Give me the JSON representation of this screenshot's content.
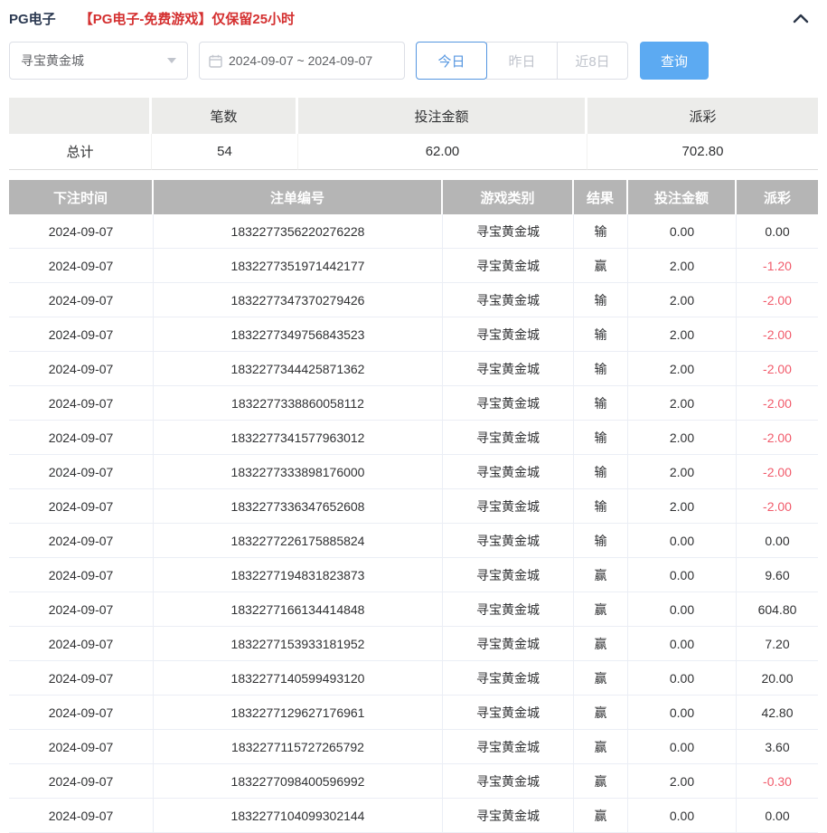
{
  "header": {
    "title": "PG电子",
    "notice": "【PG电子-免费游戏】仅保留25小时",
    "collapse_icon": "chevron-up"
  },
  "filters": {
    "game_select": {
      "value": "寻宝黄金城",
      "icon": "caret-down"
    },
    "date_range": {
      "value": "2024-09-07 ~ 2024-09-07",
      "icon": "calendar"
    },
    "quick_buttons": [
      {
        "label": "今日",
        "active": true
      },
      {
        "label": "昨日",
        "active": false
      },
      {
        "label": "近8日",
        "active": false
      }
    ],
    "search_label": "查询"
  },
  "summary": {
    "headers": {
      "blank": "",
      "count": "笔数",
      "bet_amount": "投注金额",
      "payout": "派彩"
    },
    "total": {
      "label": "总计",
      "count": "54",
      "bet_amount": "62.00",
      "payout": "702.80"
    }
  },
  "table": {
    "headers": [
      "下注时间",
      "注单编号",
      "游戏类别",
      "结果",
      "投注金额",
      "派彩"
    ],
    "rows": [
      {
        "date": "2024-09-07",
        "id": "1832277356220276228",
        "game": "寻宝黄金城",
        "result": "输",
        "amount": "0.00",
        "payout": "0.00"
      },
      {
        "date": "2024-09-07",
        "id": "1832277351971442177",
        "game": "寻宝黄金城",
        "result": "赢",
        "amount": "2.00",
        "payout": "-1.20"
      },
      {
        "date": "2024-09-07",
        "id": "1832277347370279426",
        "game": "寻宝黄金城",
        "result": "输",
        "amount": "2.00",
        "payout": "-2.00"
      },
      {
        "date": "2024-09-07",
        "id": "1832277349756843523",
        "game": "寻宝黄金城",
        "result": "输",
        "amount": "2.00",
        "payout": "-2.00"
      },
      {
        "date": "2024-09-07",
        "id": "1832277344425871362",
        "game": "寻宝黄金城",
        "result": "输",
        "amount": "2.00",
        "payout": "-2.00"
      },
      {
        "date": "2024-09-07",
        "id": "1832277338860058112",
        "game": "寻宝黄金城",
        "result": "输",
        "amount": "2.00",
        "payout": "-2.00"
      },
      {
        "date": "2024-09-07",
        "id": "1832277341577963012",
        "game": "寻宝黄金城",
        "result": "输",
        "amount": "2.00",
        "payout": "-2.00"
      },
      {
        "date": "2024-09-07",
        "id": "1832277333898176000",
        "game": "寻宝黄金城",
        "result": "输",
        "amount": "2.00",
        "payout": "-2.00"
      },
      {
        "date": "2024-09-07",
        "id": "1832277336347652608",
        "game": "寻宝黄金城",
        "result": "输",
        "amount": "2.00",
        "payout": "-2.00"
      },
      {
        "date": "2024-09-07",
        "id": "1832277226175885824",
        "game": "寻宝黄金城",
        "result": "输",
        "amount": "0.00",
        "payout": "0.00"
      },
      {
        "date": "2024-09-07",
        "id": "1832277194831823873",
        "game": "寻宝黄金城",
        "result": "赢",
        "amount": "0.00",
        "payout": "9.60"
      },
      {
        "date": "2024-09-07",
        "id": "1832277166134414848",
        "game": "寻宝黄金城",
        "result": "赢",
        "amount": "0.00",
        "payout": "604.80"
      },
      {
        "date": "2024-09-07",
        "id": "1832277153933181952",
        "game": "寻宝黄金城",
        "result": "赢",
        "amount": "0.00",
        "payout": "7.20"
      },
      {
        "date": "2024-09-07",
        "id": "1832277140599493120",
        "game": "寻宝黄金城",
        "result": "赢",
        "amount": "0.00",
        "payout": "20.00"
      },
      {
        "date": "2024-09-07",
        "id": "1832277129627176961",
        "game": "寻宝黄金城",
        "result": "赢",
        "amount": "0.00",
        "payout": "42.80"
      },
      {
        "date": "2024-09-07",
        "id": "1832277115727265792",
        "game": "寻宝黄金城",
        "result": "赢",
        "amount": "0.00",
        "payout": "3.60"
      },
      {
        "date": "2024-09-07",
        "id": "1832277098400596992",
        "game": "寻宝黄金城",
        "result": "赢",
        "amount": "2.00",
        "payout": "-0.30"
      },
      {
        "date": "2024-09-07",
        "id": "1832277104099302144",
        "game": "寻宝黄金城",
        "result": "赢",
        "amount": "0.00",
        "payout": "0.00"
      }
    ]
  },
  "colors": {
    "accent_blue": "#5caaf2",
    "active_outline_blue": "#5596e0",
    "notice_red": "#d43030",
    "negative_red": "#f15b6b",
    "table_header_gray": "#b5b5b5",
    "summary_header_gray": "#ececea"
  }
}
